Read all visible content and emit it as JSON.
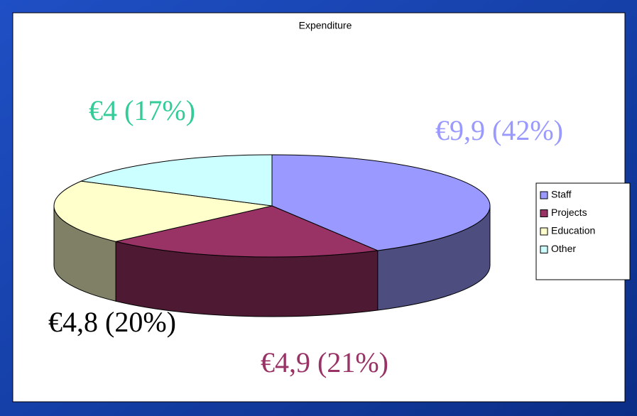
{
  "chart_data": {
    "type": "pie",
    "title": "Expenditure",
    "categories": [
      "Staff",
      "Projects",
      "Education",
      "Other"
    ],
    "values": [
      9.9,
      4.9,
      4.8,
      4
    ],
    "value_labels": [
      "€9,9 (42%)",
      "€4,9 (21%)",
      "€4,8 (20%)",
      "€4 (17%)"
    ],
    "colors": [
      "#9999ff",
      "#993366",
      "#ffffcc",
      "#ccffff"
    ],
    "side_colors": [
      "#4d4d80",
      "#4d1933",
      "#808066",
      "#668080"
    ],
    "label_colors": [
      "#9999ff",
      "#993366",
      "#000000",
      "#33cc99"
    ],
    "legend": "right"
  }
}
